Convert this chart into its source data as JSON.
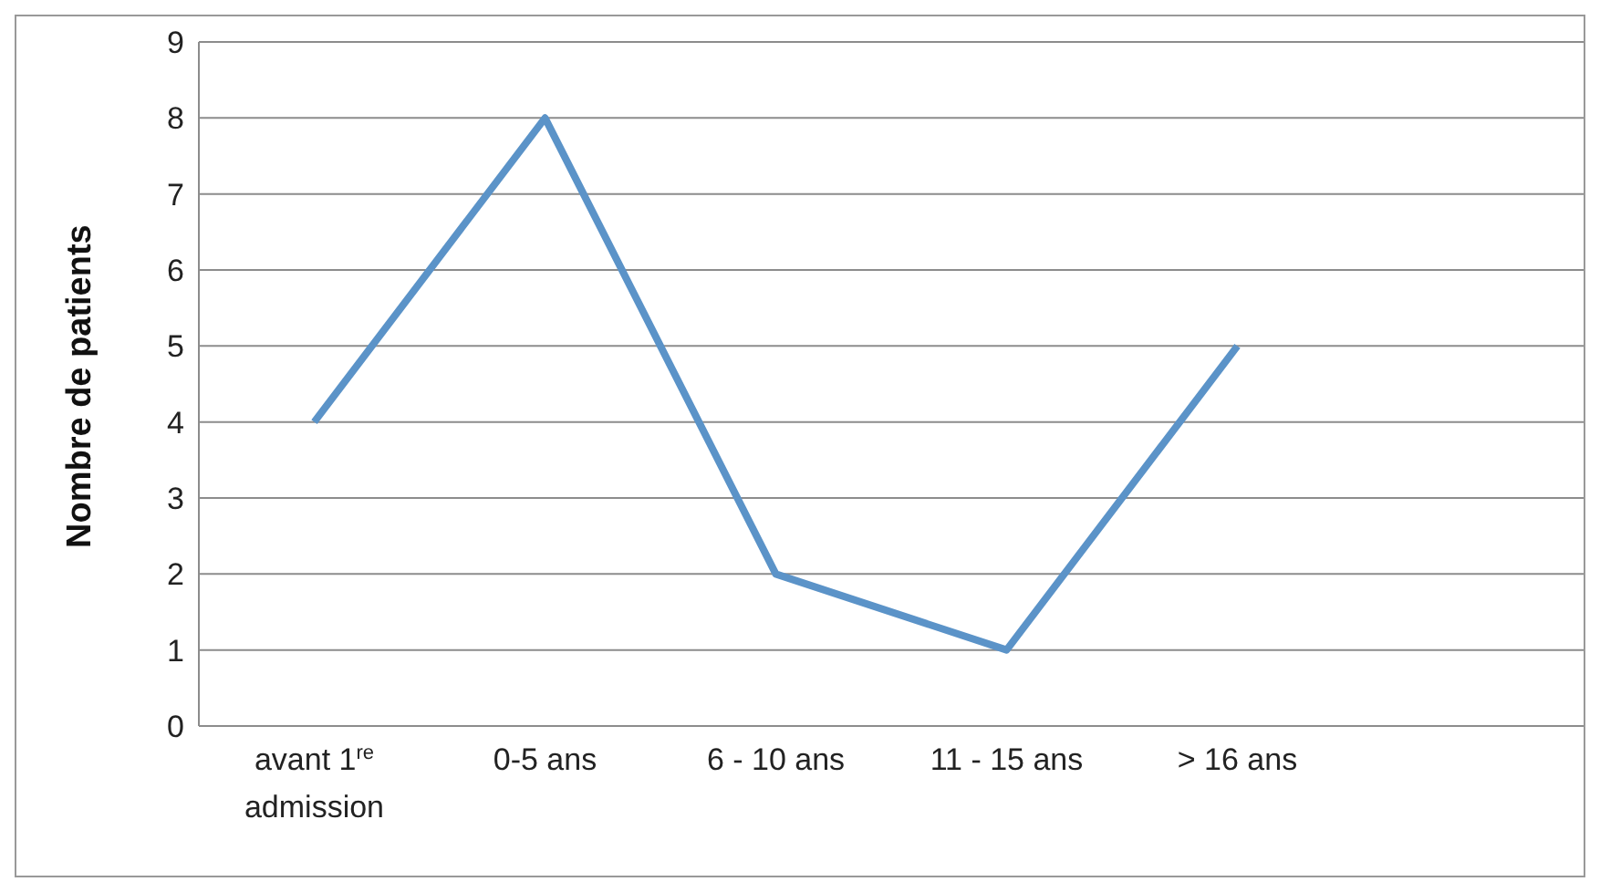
{
  "chart_data": {
    "type": "line",
    "ylabel": "Nombre de patients",
    "categories": [
      "avant 1$^{re}$ admission",
      "0-5 ans",
      "6 - 10 ans",
      "11 - 15 ans",
      "> 16 ans",
      null
    ],
    "series": [
      {
        "color": "#5b93c8",
        "values": [
          4,
          8,
          2,
          1,
          5,
          null
        ]
      }
    ],
    "ylim": [
      0,
      9
    ],
    "yticks": [
      0,
      1,
      2,
      3,
      4,
      5,
      6,
      7,
      8,
      9
    ],
    "grid": "y",
    "marker": "none",
    "line_style": "solid"
  }
}
